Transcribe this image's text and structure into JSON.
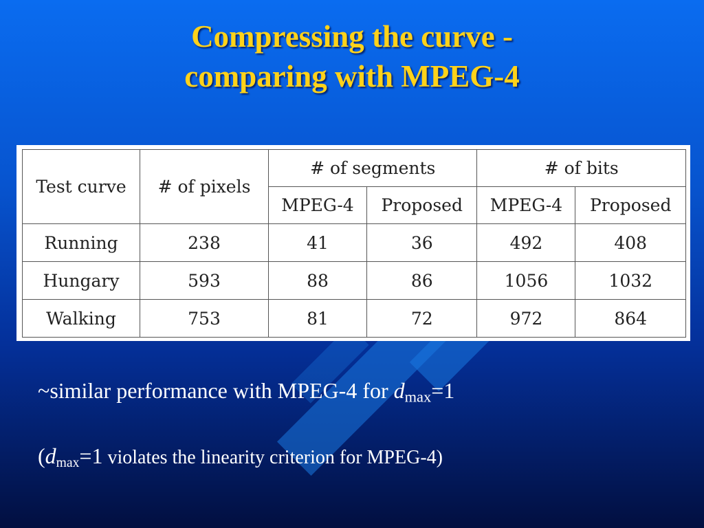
{
  "slide": {
    "title_line1": "Compressing the curve -",
    "title_line2": "comparing with MPEG-4"
  },
  "table": {
    "headers": {
      "test_curve": "Test curve",
      "pixels": "# of pixels",
      "segments": "# of segments",
      "bits": "# of bits",
      "mpeg4": "MPEG-4",
      "proposed": "Proposed"
    },
    "rows": [
      {
        "name": "Running",
        "pixels": "238",
        "seg_mpeg4": "41",
        "seg_proposed": "36",
        "bits_mpeg4": "492",
        "bits_proposed": "408"
      },
      {
        "name": "Hungary",
        "pixels": "593",
        "seg_mpeg4": "88",
        "seg_proposed": "86",
        "bits_mpeg4": "1056",
        "bits_proposed": "1032"
      },
      {
        "name": "Walking",
        "pixels": "753",
        "seg_mpeg4": "81",
        "seg_proposed": "72",
        "bits_mpeg4": "972",
        "bits_proposed": "864"
      }
    ]
  },
  "notes": {
    "line1_prefix": "~similar performance with MPEG-4 for ",
    "var_d": "d",
    "sub_max": "max",
    "eq_one": "=1",
    "open_paren": "(",
    "line2_suffix": " violates the linearity criterion for MPEG-4)"
  }
}
